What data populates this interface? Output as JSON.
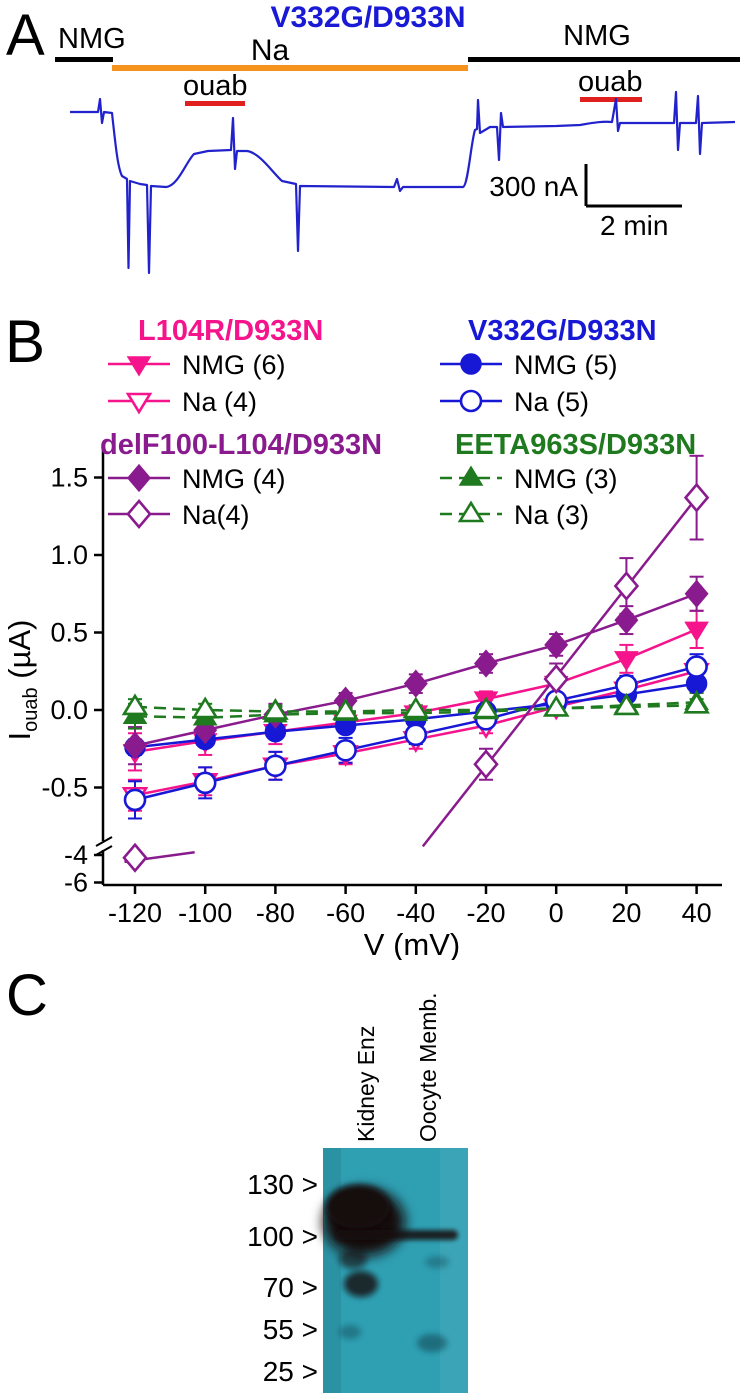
{
  "figure_labels": {
    "a": "A",
    "b": "B",
    "c": "C"
  },
  "panel_a": {
    "title": "V332G/D933N",
    "solution_labels": {
      "nmg_left": "NMG",
      "na": "Na",
      "ouab_left": "ouab",
      "nmg_right": "NMG",
      "ouab_right": "ouab"
    },
    "scale_bar": {
      "current": "300 nA",
      "time": "2 min"
    },
    "colors": {
      "trace": "#2222cc",
      "na_bar": "#f6921e",
      "ouab_bar": "#e01f1f",
      "nmg_bar": "#000000",
      "title": "#1a1ad6"
    }
  },
  "chart_data": {
    "type": "scatter",
    "title": "",
    "xlabel": "V (mV)",
    "ylabel": {
      "main": "I",
      "sub": "ouab",
      "unit": "(µA)"
    },
    "grid": false,
    "legend_position": "top",
    "xlim": [
      -129,
      47
    ],
    "ylim_main": [
      -0.9,
      1.7
    ],
    "ylim_break": [
      -6,
      -4
    ],
    "axis_break": true,
    "x_ticks": [
      -120,
      -100,
      -80,
      -60,
      -40,
      -20,
      0,
      20,
      40
    ],
    "y_axis": {
      "main_tick_values": [
        1.5,
        1.0,
        0.5,
        0.0,
        -0.5
      ],
      "main_tick_labels": [
        "1.5",
        "1.0",
        "0.5",
        "0.0",
        "-0.5"
      ],
      "break_tick_values": [
        -4,
        -6
      ],
      "break_tick_labels": [
        "-4",
        "-6"
      ]
    },
    "groups": [
      {
        "name": "L104R/D933N",
        "color": "#f5148c",
        "series": [
          {
            "label": "NMG (6)",
            "marker": "triangle-down",
            "fill": "filled",
            "x": [
              -120,
              -100,
              -80,
              -60,
              -40,
              -20,
              0,
              20,
              40
            ],
            "y": [
              -0.27,
              -0.2,
              -0.14,
              -0.08,
              -0.02,
              0.07,
              0.17,
              0.33,
              0.52
            ],
            "err": [
              0.12,
              0.09,
              0.08,
              0.06,
              0.05,
              0.05,
              0.06,
              0.09,
              0.12
            ]
          },
          {
            "label": "Na (4)",
            "marker": "triangle-down",
            "fill": "open",
            "x": [
              -120,
              -100,
              -80,
              -60,
              -40,
              -20,
              0,
              20,
              40
            ],
            "y": [
              -0.55,
              -0.46,
              -0.36,
              -0.28,
              -0.19,
              -0.1,
              0.02,
              0.13,
              0.25
            ],
            "err": [
              0.1,
              0.09,
              0.09,
              0.07,
              0.06,
              0.05,
              0.05,
              0.06,
              0.08
            ]
          }
        ]
      },
      {
        "name": "V332G/D933N",
        "color": "#1717d6",
        "series": [
          {
            "label": "NMG (5)",
            "marker": "circle",
            "fill": "filled",
            "x": [
              -120,
              -100,
              -80,
              -60,
              -40,
              -20,
              0,
              20,
              40
            ],
            "y": [
              -0.24,
              -0.19,
              -0.14,
              -0.1,
              -0.06,
              -0.01,
              0.04,
              0.1,
              0.17
            ],
            "err": [
              0.05,
              0.04,
              0.04,
              0.03,
              0.03,
              0.03,
              0.03,
              0.04,
              0.05
            ]
          },
          {
            "label": "Na (5)",
            "marker": "circle",
            "fill": "open",
            "x": [
              -120,
              -100,
              -80,
              -60,
              -40,
              -20,
              0,
              20,
              40
            ],
            "y": [
              -0.58,
              -0.47,
              -0.36,
              -0.26,
              -0.16,
              -0.06,
              0.06,
              0.16,
              0.28
            ],
            "err": [
              0.12,
              0.1,
              0.09,
              0.08,
              0.06,
              0.05,
              0.05,
              0.06,
              0.08
            ]
          }
        ]
      },
      {
        "name": "delF100-L104/D933N",
        "color": "#8a1b8e",
        "series": [
          {
            "label": "NMG (4)",
            "marker": "diamond",
            "fill": "filled",
            "x": [
              -120,
              -100,
              -80,
              -60,
              -40,
              -20,
              0,
              20,
              40
            ],
            "y": [
              -0.23,
              -0.13,
              -0.03,
              0.06,
              0.17,
              0.3,
              0.42,
              0.58,
              0.75
            ],
            "err": [
              0.12,
              0.09,
              0.07,
              0.05,
              0.06,
              0.06,
              0.07,
              0.09,
              0.11
            ]
          },
          {
            "label": "Na(4)",
            "marker": "diamond",
            "fill": "open",
            "x": [
              -120,
              -20,
              0,
              20,
              40
            ],
            "y": [
              -4.2,
              -0.35,
              0.2,
              0.8,
              1.37
            ],
            "err": [
              0.35,
              0.1,
              0.1,
              0.18,
              0.27
            ],
            "fit": [
              [
                -38,
                -0.88
              ],
              [
                40,
                1.37
              ]
            ],
            "stub": [
              [
                -123,
                -4.5
              ],
              [
                -103,
                -3.8
              ]
            ]
          }
        ]
      },
      {
        "name": "EETA963S/D933N",
        "color": "#1f7a1f",
        "dashed": true,
        "series": [
          {
            "label": "NMG (3)",
            "marker": "triangle-up",
            "fill": "filled",
            "x": [
              -120,
              -100,
              -80,
              -60,
              -40,
              -20,
              0,
              20,
              40
            ],
            "y": [
              -0.04,
              -0.05,
              -0.03,
              -0.02,
              -0.02,
              -0.01,
              0.01,
              0.03,
              0.05
            ],
            "err": [
              0.08,
              0.06,
              0.05,
              0.05,
              0.04,
              0.04,
              0.04,
              0.05,
              0.06
            ]
          },
          {
            "label": "Na (3)",
            "marker": "triangle-up",
            "fill": "open",
            "x": [
              -120,
              -100,
              -80,
              -60,
              -40,
              -20,
              0,
              20,
              40
            ],
            "y": [
              0.02,
              0.0,
              -0.01,
              -0.01,
              0.0,
              0.0,
              0.01,
              0.02,
              0.03
            ],
            "err": [
              0.05,
              0.04,
              0.04,
              0.03,
              0.03,
              0.03,
              0.03,
              0.04,
              0.04
            ]
          }
        ]
      }
    ]
  },
  "panel_c": {
    "lane_labels": [
      "Kidney Enz",
      "Oocyte Memb."
    ],
    "mw_markers": [
      "130 >",
      "100 >",
      "70 >",
      "55 >",
      "25 >"
    ],
    "colors": {
      "membrane_bg": "#2f9fb2",
      "band": "#160810",
      "smudge": "#0c3d4a"
    }
  }
}
